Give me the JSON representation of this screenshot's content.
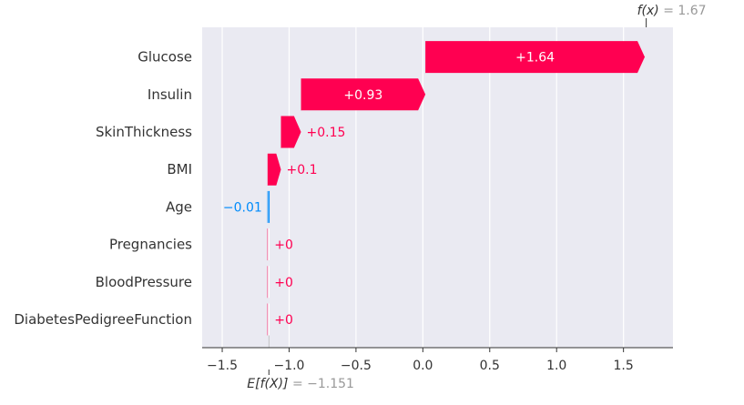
{
  "chart_data": {
    "type": "waterfall",
    "features": [
      "Glucose",
      "Insulin",
      "SkinThickness",
      "BMI",
      "Age",
      "Pregnancies",
      "BloodPressure",
      "DiabetesPedigreeFunction"
    ],
    "contributions": [
      1.64,
      0.93,
      0.15,
      0.1,
      -0.01,
      0,
      0,
      0
    ],
    "contribution_labels": [
      "+1.64",
      "+0.93",
      "+0.15",
      "+0.1",
      "−0.01",
      "+0",
      "+0",
      "+0"
    ],
    "base_value": -1.151,
    "output_value": 1.67,
    "base_label_expr": "E[f(X)]",
    "base_label_value": " = −1.151",
    "output_label_expr": "f(x)",
    "output_label_value": " = 1.67",
    "xlim": [
      -1.65,
      1.87
    ],
    "xticks": [
      -1.5,
      -1.0,
      -0.5,
      0.0,
      0.5,
      1.0,
      1.5
    ],
    "xtick_labels": [
      "−1.5",
      "−1.0",
      "−0.5",
      "0.0",
      "0.5",
      "1.0",
      "1.5"
    ],
    "grid": true,
    "colors": {
      "positive": "#ff0051",
      "negative": "#008bfb",
      "background": "#eaeaf2",
      "grid": "#ffffff",
      "text": "#333333",
      "muted": "#999999",
      "axis": "#333333"
    }
  }
}
